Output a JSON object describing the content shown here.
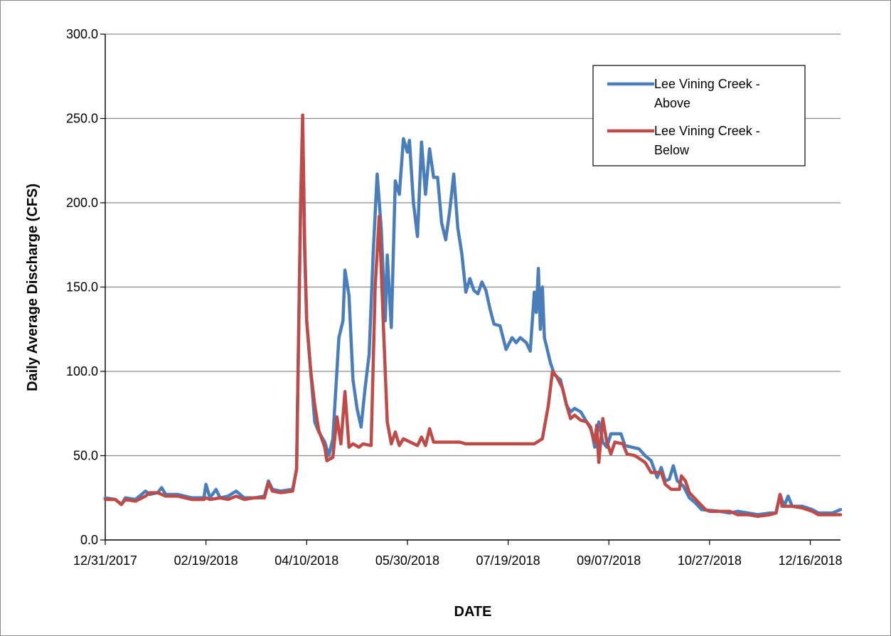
{
  "chart_data": {
    "type": "line",
    "title": "",
    "xlabel": "DATE",
    "ylabel": "Daily Average Discharge (CFS)",
    "ylim": [
      0,
      300
    ],
    "y_ticks": [
      "0.0",
      "50.0",
      "100.0",
      "150.0",
      "200.0",
      "250.0",
      "300.0"
    ],
    "xlim": [
      "2017-12-31",
      "2018-12-31"
    ],
    "x_ticks": [
      "12/31/2017",
      "02/19/2018",
      "04/10/2018",
      "05/30/2018",
      "07/19/2018",
      "09/07/2018",
      "10/27/2018",
      "12/16/2018"
    ],
    "grid": true,
    "legend_position": "top-right",
    "series": [
      {
        "name": "Lee Vining Creek - Above",
        "color": "#4a7ebb",
        "points": [
          [
            "2017-12-31",
            25
          ],
          [
            "2018-01-05",
            24
          ],
          [
            "2018-01-08",
            21
          ],
          [
            "2018-01-10",
            25
          ],
          [
            "2018-01-15",
            24
          ],
          [
            "2018-01-20",
            29
          ],
          [
            "2018-01-22",
            27
          ],
          [
            "2018-01-26",
            28
          ],
          [
            "2018-01-28",
            31
          ],
          [
            "2018-01-30",
            27
          ],
          [
            "2018-02-05",
            27
          ],
          [
            "2018-02-12",
            25
          ],
          [
            "2018-02-18",
            25
          ],
          [
            "2018-02-19",
            33
          ],
          [
            "2018-02-21",
            25
          ],
          [
            "2018-02-24",
            30
          ],
          [
            "2018-02-26",
            25
          ],
          [
            "2018-03-02",
            26
          ],
          [
            "2018-03-06",
            29
          ],
          [
            "2018-03-10",
            25
          ],
          [
            "2018-03-15",
            25
          ],
          [
            "2018-03-20",
            26
          ],
          [
            "2018-03-22",
            35
          ],
          [
            "2018-03-24",
            30
          ],
          [
            "2018-03-28",
            29
          ],
          [
            "2018-04-03",
            30
          ],
          [
            "2018-04-05",
            42
          ],
          [
            "2018-04-07",
            200
          ],
          [
            "2018-04-08",
            240
          ],
          [
            "2018-04-09",
            170
          ],
          [
            "2018-04-10",
            130
          ],
          [
            "2018-04-12",
            100
          ],
          [
            "2018-04-14",
            70
          ],
          [
            "2018-04-16",
            64
          ],
          [
            "2018-04-19",
            58
          ],
          [
            "2018-04-21",
            50
          ],
          [
            "2018-04-23",
            60
          ],
          [
            "2018-04-26",
            120
          ],
          [
            "2018-04-28",
            130
          ],
          [
            "2018-04-29",
            160
          ],
          [
            "2018-05-01",
            145
          ],
          [
            "2018-05-03",
            95
          ],
          [
            "2018-05-05",
            78
          ],
          [
            "2018-05-07",
            67
          ],
          [
            "2018-05-09",
            90
          ],
          [
            "2018-05-11",
            110
          ],
          [
            "2018-05-13",
            170
          ],
          [
            "2018-05-15",
            217
          ],
          [
            "2018-05-17",
            185
          ],
          [
            "2018-05-19",
            130
          ],
          [
            "2018-05-20",
            169
          ],
          [
            "2018-05-22",
            126
          ],
          [
            "2018-05-24",
            213
          ],
          [
            "2018-05-26",
            205
          ],
          [
            "2018-05-28",
            238
          ],
          [
            "2018-05-30",
            230
          ],
          [
            "2018-05-31",
            237
          ],
          [
            "2018-06-02",
            200
          ],
          [
            "2018-06-04",
            180
          ],
          [
            "2018-06-06",
            236
          ],
          [
            "2018-06-08",
            205
          ],
          [
            "2018-06-10",
            232
          ],
          [
            "2018-06-12",
            215
          ],
          [
            "2018-06-14",
            215
          ],
          [
            "2018-06-16",
            188
          ],
          [
            "2018-06-18",
            178
          ],
          [
            "2018-06-20",
            195
          ],
          [
            "2018-06-22",
            217
          ],
          [
            "2018-06-24",
            185
          ],
          [
            "2018-06-26",
            170
          ],
          [
            "2018-06-28",
            147
          ],
          [
            "2018-06-30",
            155
          ],
          [
            "2018-07-02",
            148
          ],
          [
            "2018-07-04",
            146
          ],
          [
            "2018-07-06",
            153
          ],
          [
            "2018-07-08",
            148
          ],
          [
            "2018-07-10",
            137
          ],
          [
            "2018-07-12",
            128
          ],
          [
            "2018-07-15",
            127
          ],
          [
            "2018-07-18",
            113
          ],
          [
            "2018-07-21",
            120
          ],
          [
            "2018-07-23",
            117
          ],
          [
            "2018-07-25",
            120
          ],
          [
            "2018-07-28",
            117
          ],
          [
            "2018-07-30",
            112
          ],
          [
            "2018-08-01",
            147
          ],
          [
            "2018-08-02",
            135
          ],
          [
            "2018-08-03",
            161
          ],
          [
            "2018-08-04",
            125
          ],
          [
            "2018-08-05",
            150
          ],
          [
            "2018-08-06",
            120
          ],
          [
            "2018-08-09",
            105
          ],
          [
            "2018-08-11",
            98
          ],
          [
            "2018-08-14",
            95
          ],
          [
            "2018-08-17",
            80
          ],
          [
            "2018-08-19",
            76
          ],
          [
            "2018-08-21",
            78
          ],
          [
            "2018-08-24",
            76
          ],
          [
            "2018-08-27",
            70
          ],
          [
            "2018-08-29",
            67
          ],
          [
            "2018-08-31",
            55
          ],
          [
            "2018-09-02",
            70
          ],
          [
            "2018-09-04",
            58
          ],
          [
            "2018-09-06",
            55
          ],
          [
            "2018-09-08",
            63
          ],
          [
            "2018-09-13",
            63
          ],
          [
            "2018-09-15",
            56
          ],
          [
            "2018-09-22",
            54
          ],
          [
            "2018-09-25",
            50
          ],
          [
            "2018-09-28",
            47
          ],
          [
            "2018-10-01",
            37
          ],
          [
            "2018-10-03",
            43
          ],
          [
            "2018-10-05",
            35
          ],
          [
            "2018-10-07",
            36
          ],
          [
            "2018-10-09",
            44
          ],
          [
            "2018-10-11",
            35
          ],
          [
            "2018-10-14",
            32
          ],
          [
            "2018-10-17",
            25
          ],
          [
            "2018-10-20",
            22
          ],
          [
            "2018-10-23",
            18
          ],
          [
            "2018-11-01",
            17
          ],
          [
            "2018-11-06",
            16
          ],
          [
            "2018-11-10",
            17
          ],
          [
            "2018-11-15",
            16
          ],
          [
            "2018-11-20",
            15
          ],
          [
            "2018-11-26",
            16
          ],
          [
            "2018-11-29",
            16
          ],
          [
            "2018-12-01",
            27
          ],
          [
            "2018-12-03",
            20
          ],
          [
            "2018-12-05",
            26
          ],
          [
            "2018-12-07",
            20
          ],
          [
            "2018-12-12",
            20
          ],
          [
            "2018-12-17",
            18
          ],
          [
            "2018-12-20",
            16
          ],
          [
            "2018-12-27",
            16
          ],
          [
            "2018-12-31",
            18
          ]
        ]
      },
      {
        "name": "Lee Vining Creek - Below",
        "color": "#be4b48",
        "points": [
          [
            "2017-12-31",
            24
          ],
          [
            "2018-01-05",
            24
          ],
          [
            "2018-01-08",
            21
          ],
          [
            "2018-01-10",
            24
          ],
          [
            "2018-01-15",
            23
          ],
          [
            "2018-01-20",
            26
          ],
          [
            "2018-01-22",
            28
          ],
          [
            "2018-01-26",
            28
          ],
          [
            "2018-01-30",
            26
          ],
          [
            "2018-02-05",
            26
          ],
          [
            "2018-02-12",
            24
          ],
          [
            "2018-02-18",
            24
          ],
          [
            "2018-02-19",
            25
          ],
          [
            "2018-02-21",
            24
          ],
          [
            "2018-02-26",
            25
          ],
          [
            "2018-03-02",
            24
          ],
          [
            "2018-03-06",
            26
          ],
          [
            "2018-03-10",
            24
          ],
          [
            "2018-03-15",
            25
          ],
          [
            "2018-03-20",
            25
          ],
          [
            "2018-03-22",
            34
          ],
          [
            "2018-03-24",
            29
          ],
          [
            "2018-03-28",
            28
          ],
          [
            "2018-04-03",
            29
          ],
          [
            "2018-04-05",
            42
          ],
          [
            "2018-04-07",
            200
          ],
          [
            "2018-04-08",
            252
          ],
          [
            "2018-04-09",
            175
          ],
          [
            "2018-04-10",
            130
          ],
          [
            "2018-04-12",
            100
          ],
          [
            "2018-04-14",
            80
          ],
          [
            "2018-04-16",
            65
          ],
          [
            "2018-04-19",
            55
          ],
          [
            "2018-04-20",
            47
          ],
          [
            "2018-04-23",
            49
          ],
          [
            "2018-04-25",
            73
          ],
          [
            "2018-04-27",
            57
          ],
          [
            "2018-04-29",
            88
          ],
          [
            "2018-05-01",
            55
          ],
          [
            "2018-05-03",
            57
          ],
          [
            "2018-05-06",
            55
          ],
          [
            "2018-05-08",
            57
          ],
          [
            "2018-05-12",
            56
          ],
          [
            "2018-05-14",
            150
          ],
          [
            "2018-05-16",
            192
          ],
          [
            "2018-05-18",
            130
          ],
          [
            "2018-05-20",
            70
          ],
          [
            "2018-05-22",
            57
          ],
          [
            "2018-05-24",
            64
          ],
          [
            "2018-05-26",
            56
          ],
          [
            "2018-05-28",
            60
          ],
          [
            "2018-06-04",
            56
          ],
          [
            "2018-06-06",
            61
          ],
          [
            "2018-06-08",
            56
          ],
          [
            "2018-06-10",
            66
          ],
          [
            "2018-06-12",
            58
          ],
          [
            "2018-06-15",
            58
          ],
          [
            "2018-06-25",
            58
          ],
          [
            "2018-06-28",
            57
          ],
          [
            "2018-07-05",
            57
          ],
          [
            "2018-07-15",
            57
          ],
          [
            "2018-07-25",
            57
          ],
          [
            "2018-08-01",
            57
          ],
          [
            "2018-08-05",
            60
          ],
          [
            "2018-08-08",
            80
          ],
          [
            "2018-08-10",
            100
          ],
          [
            "2018-08-12",
            97
          ],
          [
            "2018-08-15",
            90
          ],
          [
            "2018-08-17",
            80
          ],
          [
            "2018-08-19",
            72
          ],
          [
            "2018-08-21",
            74
          ],
          [
            "2018-08-24",
            71
          ],
          [
            "2018-08-27",
            70
          ],
          [
            "2018-08-29",
            66
          ],
          [
            "2018-08-31",
            58
          ],
          [
            "2018-09-01",
            68
          ],
          [
            "2018-09-02",
            46
          ],
          [
            "2018-09-04",
            72
          ],
          [
            "2018-09-06",
            58
          ],
          [
            "2018-09-08",
            51
          ],
          [
            "2018-09-10",
            58
          ],
          [
            "2018-09-14",
            57
          ],
          [
            "2018-09-16",
            51
          ],
          [
            "2018-09-20",
            50
          ],
          [
            "2018-09-25",
            46
          ],
          [
            "2018-09-28",
            40
          ],
          [
            "2018-10-03",
            40
          ],
          [
            "2018-10-05",
            33
          ],
          [
            "2018-10-08",
            30
          ],
          [
            "2018-10-12",
            30
          ],
          [
            "2018-10-13",
            38
          ],
          [
            "2018-10-15",
            35
          ],
          [
            "2018-10-17",
            28
          ],
          [
            "2018-10-21",
            23
          ],
          [
            "2018-10-25",
            18
          ],
          [
            "2018-10-27",
            17
          ],
          [
            "2018-11-01",
            17
          ],
          [
            "2018-11-06",
            17
          ],
          [
            "2018-11-10",
            15
          ],
          [
            "2018-11-15",
            15
          ],
          [
            "2018-11-20",
            14
          ],
          [
            "2018-11-26",
            15
          ],
          [
            "2018-11-29",
            16
          ],
          [
            "2018-12-01",
            27
          ],
          [
            "2018-12-02",
            20
          ],
          [
            "2018-12-07",
            20
          ],
          [
            "2018-12-12",
            19
          ],
          [
            "2018-12-17",
            17
          ],
          [
            "2018-12-20",
            15
          ],
          [
            "2018-12-27",
            15
          ],
          [
            "2018-12-31",
            15
          ]
        ]
      }
    ]
  }
}
